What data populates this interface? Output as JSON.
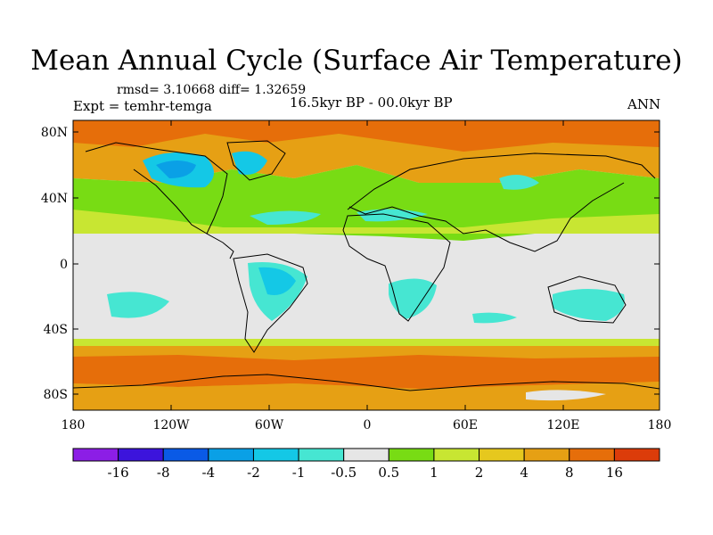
{
  "header": {
    "title": "Mean Annual Cycle (Surface Air Temperature)",
    "stats": "rmsd= 3.10668 diff= 1.32659",
    "experiment": "Expt = temhr-temga",
    "period": "16.5kyr BP - 00.0kyr BP",
    "season": "ANN"
  },
  "map": {
    "lat_ticks": [
      "80N",
      "40N",
      "0",
      "40S",
      "80S"
    ],
    "lon_ticks": [
      "180",
      "120W",
      "60W",
      "0",
      "60E",
      "120E",
      "180"
    ],
    "background_color": "#e6e6e6"
  },
  "colorbar": {
    "colors": [
      "#8c1ee6",
      "#3c14dc",
      "#0a5ae6",
      "#0aa0e6",
      "#14c8e6",
      "#46e6d2",
      "#e6e6e6",
      "#78dc14",
      "#c8e632",
      "#e6c81e",
      "#e6a014",
      "#e66e0a",
      "#dc3c0a"
    ],
    "labels": [
      "-16",
      "-8",
      "-4",
      "-2",
      "-1",
      "-0.5",
      "0.5",
      "1",
      "2",
      "4",
      "8",
      "16"
    ]
  }
}
